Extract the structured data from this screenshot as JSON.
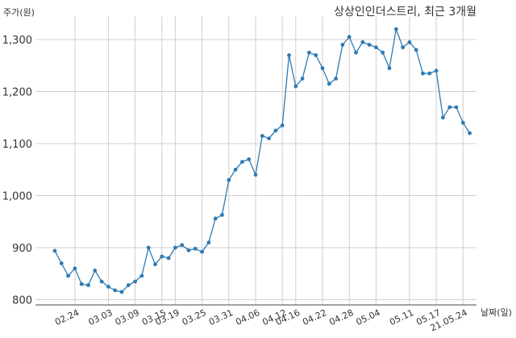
{
  "chart_data": {
    "type": "line",
    "title": "상상인인더스트리, 최근 3개월",
    "ylabel": "주가(원)",
    "xlabel": "날짜(일)",
    "ylim": [
      790,
      1345
    ],
    "yticks": [
      800,
      900,
      1000,
      1100,
      1200,
      1300
    ],
    "ytick_labels": [
      "800",
      "900",
      "1,000",
      "1,100",
      "1,200",
      "1,300"
    ],
    "xtick_labels": [
      "02.24",
      "03.03",
      "03.09",
      "03.15",
      "03.19",
      "03.25",
      "03.31",
      "04.06",
      "04.12",
      "04.16",
      "04.22",
      "04.28",
      "05.04",
      "05.11",
      "05.17",
      "21.05.24"
    ],
    "xtick_index": [
      3,
      8,
      12,
      16,
      18,
      22,
      26,
      30,
      34,
      36,
      40,
      44,
      48,
      53,
      57,
      61
    ],
    "grid": true,
    "line_color": "#2e7bb4",
    "series": [
      {
        "values": [
          894,
          870,
          846,
          860,
          830,
          828,
          856,
          835,
          825,
          818,
          815,
          828,
          835,
          846,
          900,
          868,
          883,
          880,
          900,
          905,
          895,
          898,
          892,
          910,
          956,
          963,
          1030,
          1050,
          1065,
          1070,
          1040,
          1115,
          1110,
          1125,
          1135,
          1270,
          1210,
          1225,
          1275,
          1270,
          1245,
          1215,
          1225,
          1290,
          1305,
          1275,
          1295,
          1290,
          1285,
          1275,
          1245,
          1320,
          1285,
          1295,
          1280,
          1235,
          1235,
          1240,
          1150,
          1170,
          1170,
          1140,
          1120
        ]
      }
    ]
  }
}
